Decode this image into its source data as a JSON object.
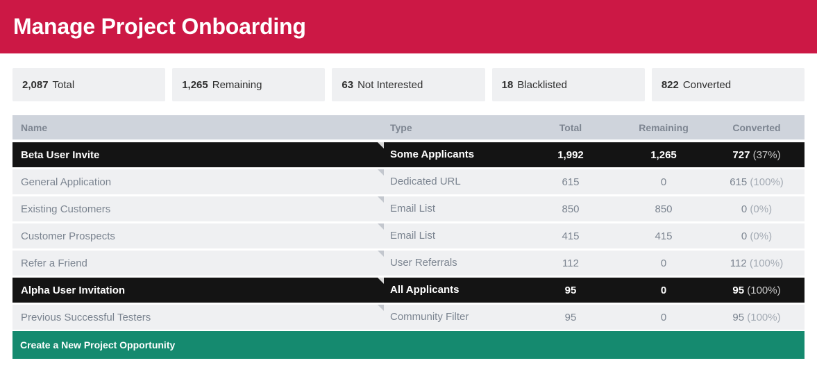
{
  "header": {
    "title": "Manage Project Onboarding"
  },
  "stats": [
    {
      "value": "2,087",
      "label": "Total"
    },
    {
      "value": "1,265",
      "label": "Remaining"
    },
    {
      "value": "63",
      "label": "Not Interested"
    },
    {
      "value": "18",
      "label": "Blacklisted"
    },
    {
      "value": "822",
      "label": "Converted"
    }
  ],
  "table": {
    "columns": {
      "name": "Name",
      "type": "Type",
      "total": "Total",
      "remaining": "Remaining",
      "converted": "Converted"
    },
    "rows": [
      {
        "name": "Beta User Invite",
        "type": "Some Applicants",
        "total": "1,992",
        "remaining": "1,265",
        "converted": "727",
        "converted_pct": "(37%)",
        "style": "dark"
      },
      {
        "name": "General Application",
        "type": "Dedicated URL",
        "total": "615",
        "remaining": "0",
        "converted": "615",
        "converted_pct": "(100%)",
        "style": "plain"
      },
      {
        "name": "Existing Customers",
        "type": "Email List",
        "total": "850",
        "remaining": "850",
        "converted": "0",
        "converted_pct": "(0%)",
        "style": "plain"
      },
      {
        "name": "Customer Prospects",
        "type": "Email List",
        "total": "415",
        "remaining": "415",
        "converted": "0",
        "converted_pct": "(0%)",
        "style": "plain"
      },
      {
        "name": "Refer a Friend",
        "type": "User Referrals",
        "total": "112",
        "remaining": "0",
        "converted": "112",
        "converted_pct": "(100%)",
        "style": "plain"
      },
      {
        "name": "Alpha User Invitation",
        "type": "All Applicants",
        "total": "95",
        "remaining": "0",
        "converted": "95",
        "converted_pct": "(100%)",
        "style": "dark"
      },
      {
        "name": "Previous Successful Testers",
        "type": "Community Filter",
        "total": "95",
        "remaining": "0",
        "converted": "95",
        "converted_pct": "(100%)",
        "style": "plain"
      }
    ]
  },
  "footer": {
    "create_label": "Create a New Project Opportunity"
  },
  "colors": {
    "header_bg": "#cc1845",
    "create_bg": "#158a6f",
    "dark_row": "#141414",
    "plain_row": "#eff0f2",
    "head_row": "#cfd4dc"
  }
}
